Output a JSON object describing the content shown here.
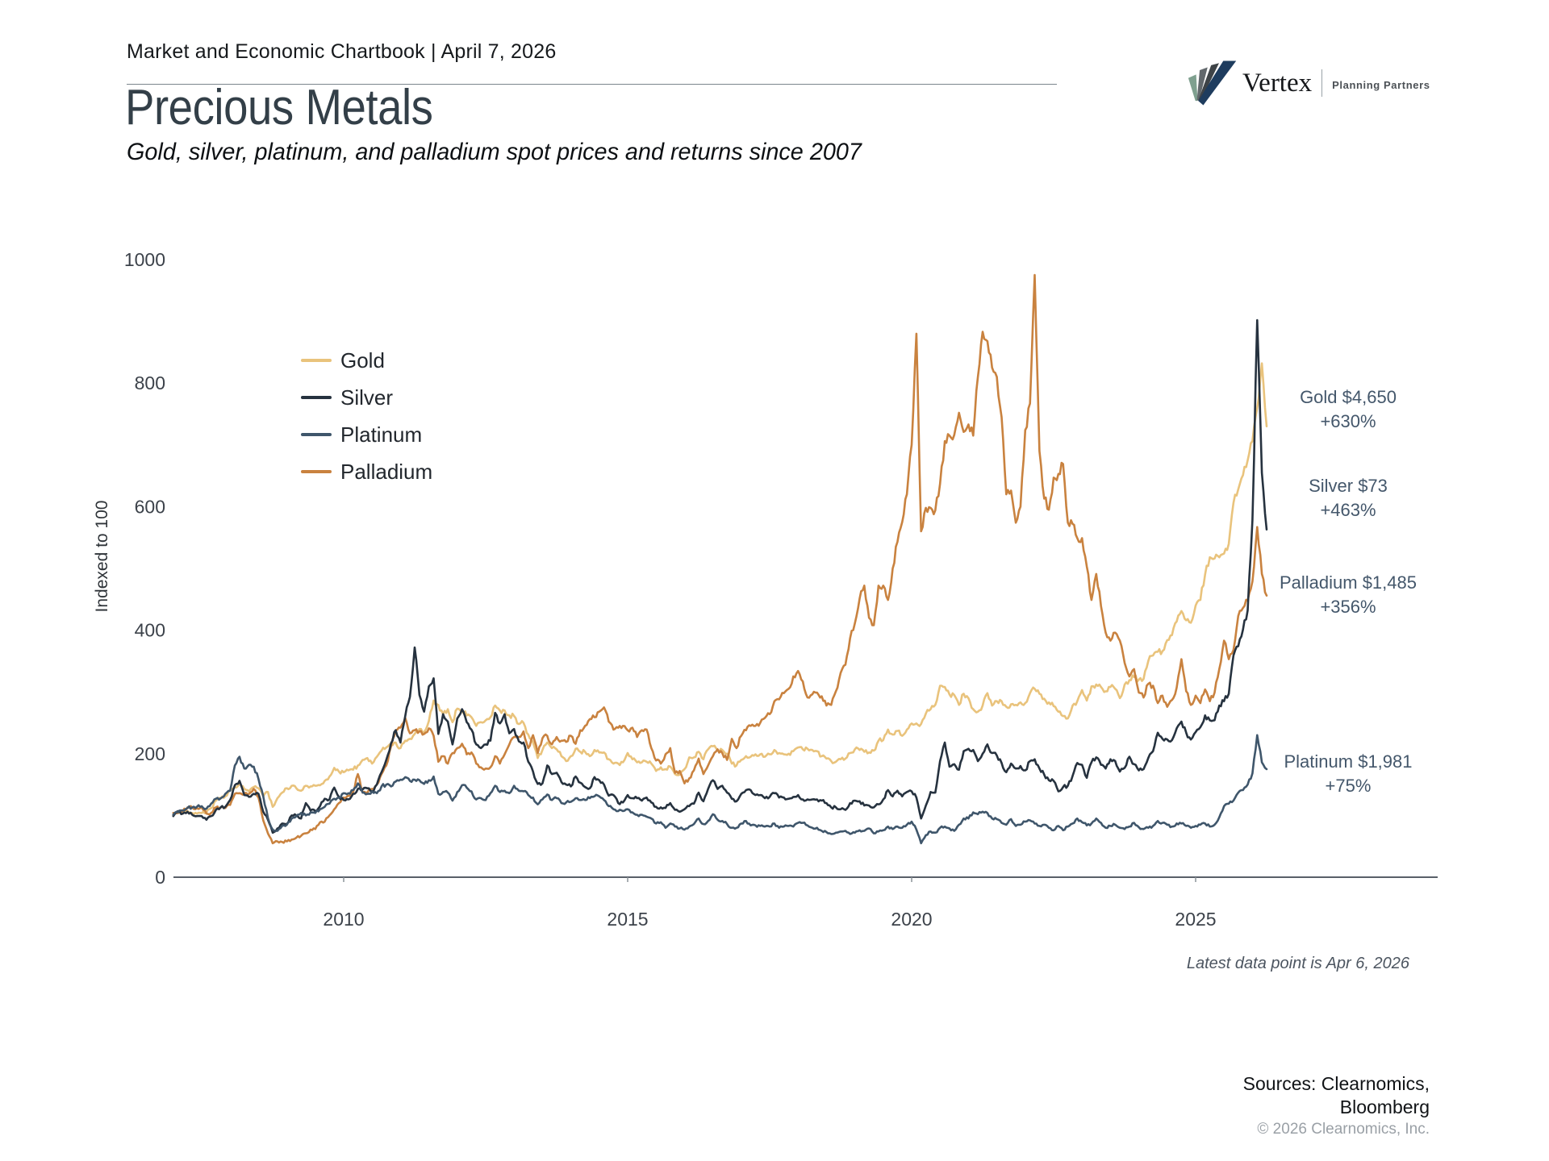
{
  "header": {
    "chartbook_title": "Market and Economic Chartbook | April 7, 2026"
  },
  "logo": {
    "name": "Vertex",
    "tagline": "Planning Partners"
  },
  "title": "Precious Metals",
  "subtitle": "Gold, silver, platinum, and palladium spot prices and returns since 2007",
  "footnote": "Latest data point is Apr 6, 2026",
  "sources": {
    "line1": "Sources: Clearnomics,",
    "line2": "Bloomberg",
    "copyright": "© 2026 Clearnomics, Inc."
  },
  "annotations": [
    {
      "id": "gold",
      "label": "Gold $4,650",
      "pct": "+630%"
    },
    {
      "id": "silver",
      "label": "Silver $73",
      "pct": "+463%"
    },
    {
      "id": "palladium",
      "label": "Palladium $1,485",
      "pct": "+356%"
    },
    {
      "id": "platinum",
      "label": "Platinum $1,981",
      "pct": "+75%"
    }
  ],
  "chart_data": {
    "type": "line",
    "title": "Precious Metals",
    "xlabel": "",
    "ylabel": "Indexed to 100",
    "ylim": [
      0,
      1000
    ],
    "yticks": [
      0,
      200,
      400,
      600,
      800,
      1000
    ],
    "xticks": [
      2010,
      2015,
      2020,
      2025
    ],
    "x_start": 2007.0,
    "x_end": 2026.25,
    "interval": "monthly",
    "grid": false,
    "legend_position": "upper-left-inside",
    "axis_color": "#596069",
    "series": [
      {
        "name": "Gold",
        "color": "#e9c37c",
        "final_label": "Gold $4,650 +630%",
        "values": [
          100,
          104,
          103,
          107,
          104,
          103,
          104,
          105,
          112,
          124,
          127,
          131,
          140,
          145,
          152,
          143,
          139,
          146,
          144,
          131,
          138,
          114,
          128,
          137,
          144,
          148,
          144,
          140,
          148,
          147,
          148,
          149,
          156,
          163,
          177,
          171,
          170,
          173,
          174,
          181,
          190,
          193,
          184,
          195,
          205,
          210,
          215,
          218,
          209,
          221,
          224,
          232,
          240,
          235,
          253,
          286,
          279,
          264,
          272,
          251,
          273,
          270,
          262,
          259,
          245,
          251,
          254,
          259,
          278,
          270,
          270,
          262,
          261,
          248,
          250,
          231,
          218,
          193,
          206,
          218,
          209,
          207,
          196,
          188,
          196,
          208,
          203,
          203,
          196,
          206,
          202,
          202,
          191,
          184,
          184,
          186,
          201,
          191,
          186,
          186,
          187,
          184,
          172,
          178,
          175,
          179,
          167,
          166,
          175,
          194,
          194,
          203,
          191,
          207,
          212,
          206,
          206,
          200,
          184,
          181,
          190,
          196,
          195,
          199,
          199,
          195,
          199,
          206,
          201,
          199,
          200,
          204,
          210,
          207,
          208,
          206,
          204,
          196,
          192,
          188,
          187,
          191,
          192,
          201,
          207,
          206,
          203,
          202,
          205,
          221,
          222,
          239,
          231,
          237,
          229,
          239,
          249,
          249,
          248,
          265,
          272,
          279,
          310,
          308,
          296,
          295,
          279,
          297,
          290,
          272,
          268,
          278,
          298,
          278,
          285,
          285,
          276,
          280,
          279,
          283,
          282,
          298,
          305,
          297,
          289,
          283,
          277,
          268,
          261,
          257,
          278,
          285,
          303,
          286,
          309,
          312,
          308,
          301,
          308,
          305,
          290,
          312,
          319,
          324,
          320,
          321,
          350,
          359,
          365,
          366,
          384,
          392,
          414,
          431,
          416,
          412,
          440,
          449,
          490,
          518,
          516,
          518,
          524,
          540,
          606,
          628,
          651,
          675,
          706,
          760,
          832,
          730
        ]
      },
      {
        "name": "Silver",
        "color": "#26323f",
        "final_label": "Silver $73 +463%",
        "values": [
          99,
          107,
          103,
          106,
          101,
          99,
          99,
          93,
          99,
          109,
          113,
          114,
          125,
          149,
          156,
          133,
          130,
          135,
          135,
          106,
          93,
          72,
          79,
          87,
          86,
          100,
          100,
          95,
          120,
          108,
          107,
          115,
          127,
          126,
          145,
          130,
          125,
          126,
          135,
          143,
          142,
          144,
          139,
          150,
          170,
          190,
          217,
          238,
          218,
          261,
          292,
          372,
          295,
          268,
          309,
          322,
          232,
          264,
          252,
          215,
          257,
          272,
          251,
          239,
          215,
          209,
          215,
          221,
          266,
          249,
          264,
          233,
          240,
          220,
          218,
          187,
          171,
          151,
          152,
          181,
          167,
          169,
          154,
          150,
          147,
          163,
          153,
          146,
          144,
          162,
          157,
          150,
          132,
          133,
          120,
          121,
          133,
          128,
          128,
          124,
          129,
          121,
          114,
          113,
          112,
          120,
          109,
          106,
          110,
          115,
          119,
          137,
          123,
          143,
          157,
          143,
          148,
          137,
          127,
          123,
          135,
          141,
          141,
          133,
          133,
          128,
          130,
          136,
          129,
          129,
          127,
          130,
          133,
          126,
          126,
          126,
          126,
          124,
          120,
          113,
          113,
          110,
          109,
          120,
          124,
          123,
          116,
          116,
          113,
          118,
          126,
          141,
          131,
          140,
          131,
          138,
          139,
          129,
          95,
          116,
          138,
          137,
          188,
          218,
          179,
          183,
          174,
          204,
          208,
          206,
          188,
          200,
          215,
          201,
          197,
          185,
          170,
          184,
          176,
          180,
          173,
          188,
          191,
          176,
          166,
          157,
          156,
          139,
          146,
          148,
          164,
          185,
          182,
          161,
          186,
          194,
          182,
          176,
          191,
          188,
          171,
          177,
          195,
          183,
          173,
          175,
          193,
          204,
          234,
          224,
          223,
          222,
          241,
          252,
          234,
          223,
          235,
          243,
          262,
          254,
          254,
          278,
          285,
          297,
          359,
          374,
          401,
          432,
          578,
          902,
          655,
          563
        ]
      },
      {
        "name": "Platinum",
        "color": "#3f566b",
        "final_label": "Platinum $1,981 +75%",
        "values": [
          101,
          105,
          108,
          112,
          113,
          114,
          115,
          111,
          119,
          127,
          128,
          135,
          140,
          181,
          195,
          176,
          182,
          179,
          159,
          131,
          96,
          77,
          75,
          83,
          85,
          95,
          99,
          104,
          100,
          105,
          104,
          110,
          114,
          119,
          127,
          129,
          136,
          136,
          141,
          152,
          137,
          135,
          139,
          136,
          147,
          150,
          147,
          155,
          158,
          162,
          156,
          158,
          157,
          151,
          157,
          163,
          135,
          138,
          137,
          124,
          138,
          149,
          145,
          139,
          126,
          128,
          125,
          136,
          148,
          138,
          140,
          136,
          148,
          140,
          139,
          133,
          129,
          118,
          126,
          134,
          125,
          128,
          120,
          121,
          122,
          128,
          125,
          125,
          128,
          131,
          131,
          125,
          115,
          110,
          107,
          107,
          110,
          105,
          101,
          101,
          98,
          95,
          87,
          89,
          80,
          87,
          82,
          79,
          77,
          82,
          86,
          95,
          86,
          91,
          102,
          93,
          91,
          86,
          80,
          80,
          87,
          91,
          84,
          84,
          83,
          82,
          82,
          87,
          80,
          82,
          83,
          82,
          88,
          88,
          84,
          80,
          80,
          75,
          73,
          70,
          72,
          74,
          75,
          70,
          72,
          76,
          75,
          79,
          71,
          74,
          76,
          82,
          78,
          82,
          80,
          85,
          90,
          77,
          55,
          68,
          74,
          72,
          80,
          82,
          79,
          75,
          85,
          95,
          95,
          105,
          102,
          106,
          104,
          95,
          94,
          88,
          85,
          94,
          83,
          85,
          90,
          92,
          87,
          83,
          85,
          80,
          76,
          83,
          76,
          82,
          87,
          95,
          89,
          84,
          87,
          95,
          88,
          80,
          83,
          85,
          80,
          78,
          82,
          88,
          81,
          78,
          80,
          83,
          91,
          88,
          85,
          82,
          87,
          87,
          83,
          80,
          83,
          85,
          87,
          82,
          85,
          97,
          115,
          119,
          124,
          137,
          141,
          150,
          168,
          230,
          186,
          175
        ]
      },
      {
        "name": "Palladium",
        "color": "#c9823f",
        "final_label": "Palladium $1,485 +356%",
        "values": [
          104,
          104,
          107,
          113,
          113,
          112,
          113,
          103,
          104,
          113,
          113,
          112,
          117,
          135,
          136,
          136,
          135,
          143,
          129,
          92,
          71,
          55,
          58,
          57,
          58,
          61,
          64,
          67,
          71,
          77,
          78,
          89,
          90,
          100,
          110,
          120,
          129,
          132,
          138,
          167,
          137,
          137,
          143,
          150,
          167,
          181,
          212,
          238,
          242,
          258,
          233,
          238,
          236,
          232,
          241,
          229,
          187,
          196,
          184,
          201,
          209,
          216,
          199,
          202,
          184,
          178,
          176,
          178,
          196,
          184,
          199,
          215,
          227,
          227,
          236,
          209,
          230,
          201,
          225,
          229,
          215,
          227,
          221,
          219,
          229,
          216,
          238,
          245,
          256,
          259,
          268,
          275,
          252,
          239,
          242,
          245,
          238,
          242,
          227,
          238,
          239,
          209,
          189,
          184,
          199,
          209,
          169,
          172,
          152,
          160,
          173,
          192,
          167,
          181,
          196,
          207,
          201,
          190,
          224,
          209,
          229,
          238,
          245,
          245,
          250,
          258,
          264,
          285,
          288,
          298,
          305,
          325,
          334,
          317,
          291,
          296,
          299,
          293,
          278,
          279,
          301,
          331,
          344,
          387,
          411,
          451,
          472,
          420,
          408,
          472,
          472,
          449,
          500,
          543,
          575,
          620,
          700,
          880,
          560,
          598,
          598,
          594,
          637,
          706,
          715,
          716,
          752,
          721,
          733,
          715,
          810,
          883,
          868,
          825,
          810,
          745,
          620,
          626,
          574,
          600,
          724,
          767,
          975,
          690,
          613,
          595,
          647,
          653,
          669,
          574,
          572,
          549,
          549,
          503,
          449,
          491,
          439,
          396,
          383,
          396,
          383,
          347,
          325,
          337,
          299,
          291,
          313,
          310,
          282,
          294,
          276,
          287,
          307,
          353,
          301,
          279,
          294,
          282,
          304,
          285,
          299,
          337,
          383,
          353,
          368,
          423,
          436,
          448,
          479,
          567,
          491,
          456
        ]
      }
    ]
  }
}
